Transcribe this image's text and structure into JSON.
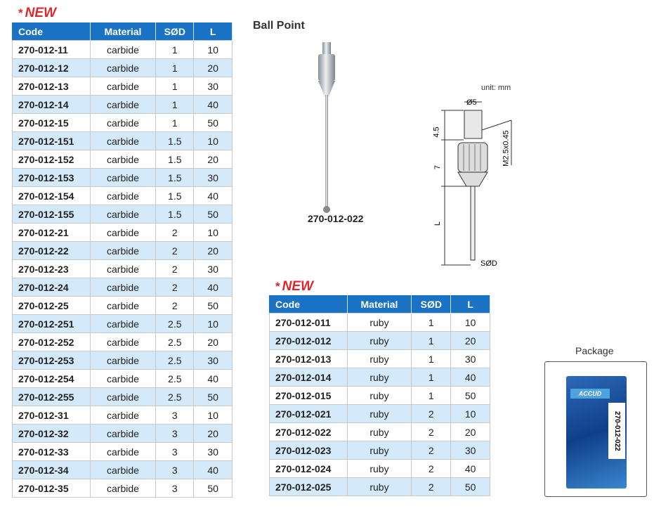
{
  "left_table": {
    "badge": "NEW",
    "headers": [
      "Code",
      "Material",
      "SØD",
      "L"
    ],
    "rows": [
      [
        "270-012-11",
        "carbide",
        "1",
        "10"
      ],
      [
        "270-012-12",
        "carbide",
        "1",
        "20"
      ],
      [
        "270-012-13",
        "carbide",
        "1",
        "30"
      ],
      [
        "270-012-14",
        "carbide",
        "1",
        "40"
      ],
      [
        "270-012-15",
        "carbide",
        "1",
        "50"
      ],
      [
        "270-012-151",
        "carbide",
        "1.5",
        "10"
      ],
      [
        "270-012-152",
        "carbide",
        "1.5",
        "20"
      ],
      [
        "270-012-153",
        "carbide",
        "1.5",
        "30"
      ],
      [
        "270-012-154",
        "carbide",
        "1.5",
        "40"
      ],
      [
        "270-012-155",
        "carbide",
        "1.5",
        "50"
      ],
      [
        "270-012-21",
        "carbide",
        "2",
        "10"
      ],
      [
        "270-012-22",
        "carbide",
        "2",
        "20"
      ],
      [
        "270-012-23",
        "carbide",
        "2",
        "30"
      ],
      [
        "270-012-24",
        "carbide",
        "2",
        "40"
      ],
      [
        "270-012-25",
        "carbide",
        "2",
        "50"
      ],
      [
        "270-012-251",
        "carbide",
        "2.5",
        "10"
      ],
      [
        "270-012-252",
        "carbide",
        "2.5",
        "20"
      ],
      [
        "270-012-253",
        "carbide",
        "2.5",
        "30"
      ],
      [
        "270-012-254",
        "carbide",
        "2.5",
        "40"
      ],
      [
        "270-012-255",
        "carbide",
        "2.5",
        "50"
      ],
      [
        "270-012-31",
        "carbide",
        "3",
        "10"
      ],
      [
        "270-012-32",
        "carbide",
        "3",
        "20"
      ],
      [
        "270-012-33",
        "carbide",
        "3",
        "30"
      ],
      [
        "270-012-34",
        "carbide",
        "3",
        "40"
      ],
      [
        "270-012-35",
        "carbide",
        "3",
        "50"
      ]
    ]
  },
  "right_table": {
    "badge": "NEW",
    "headers": [
      "Code",
      "Material",
      "SØD",
      "L"
    ],
    "rows": [
      [
        "270-012-011",
        "ruby",
        "1",
        "10"
      ],
      [
        "270-012-012",
        "ruby",
        "1",
        "20"
      ],
      [
        "270-012-013",
        "ruby",
        "1",
        "30"
      ],
      [
        "270-012-014",
        "ruby",
        "1",
        "40"
      ],
      [
        "270-012-015",
        "ruby",
        "1",
        "50"
      ],
      [
        "270-012-021",
        "ruby",
        "2",
        "10"
      ],
      [
        "270-012-022",
        "ruby",
        "2",
        "20"
      ],
      [
        "270-012-023",
        "ruby",
        "2",
        "30"
      ],
      [
        "270-012-024",
        "ruby",
        "2",
        "40"
      ],
      [
        "270-012-025",
        "ruby",
        "2",
        "50"
      ]
    ]
  },
  "product": {
    "title": "Ball Point",
    "caption": "270-012-022"
  },
  "diagram": {
    "unit": "unit: mm",
    "dia": "Ø5",
    "h1": "4.5",
    "h2": "7",
    "len": "L",
    "thread": "M2.5x0.45",
    "ball": "SØD"
  },
  "package": {
    "title": "Package",
    "brand": "ACCUD",
    "code": "270-012-022"
  },
  "colors": {
    "header": "#1a72c4",
    "alt_row": "#d4e9f9",
    "badge": "#e0262b"
  }
}
